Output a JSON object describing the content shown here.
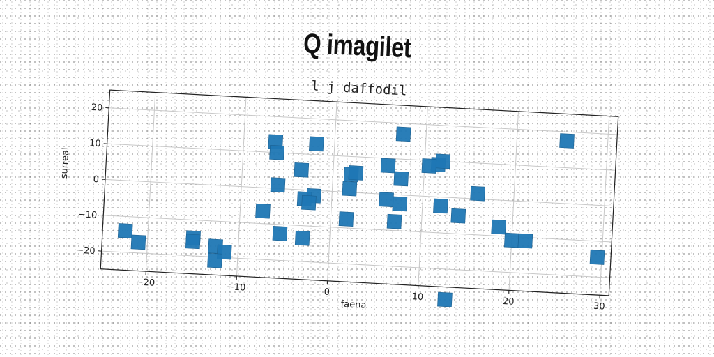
{
  "title": "Q imagilet",
  "chart_data": {
    "type": "scatter",
    "subtitle": "l j daffodil",
    "xlabel": "faena",
    "ylabel": "surreal",
    "xlim": [
      -25,
      31
    ],
    "ylim": [
      -25,
      25
    ],
    "xticks": [
      -20,
      -10,
      0,
      10,
      20,
      30
    ],
    "yticks": [
      -20,
      -10,
      0,
      10,
      20
    ],
    "xtick_labels": [
      "−20",
      "−10",
      "0",
      "10",
      "20",
      "30"
    ],
    "ytick_labels": [
      "−20",
      "−10",
      "0",
      "10",
      "20"
    ],
    "grid": true,
    "marker": "square",
    "color": "#1f77b4",
    "x": [
      7.5,
      25.5,
      -6.5,
      -6.3,
      -2,
      11.5,
      12,
      10.5,
      6,
      -3.5,
      2,
      2.5,
      7.5,
      -6,
      16,
      1.9,
      -2,
      -3,
      -2.5,
      6,
      7.5,
      12,
      14,
      7,
      -7.5,
      1.7,
      18.5,
      20,
      21.5,
      -5.5,
      -3,
      29.5,
      -22.5,
      -21,
      -15,
      -15,
      -12.5,
      -11.5,
      -12.5,
      13
    ],
    "y": [
      17,
      17.5,
      13,
      10,
      13,
      9,
      10,
      8.5,
      8,
      5.5,
      5,
      5.5,
      4.5,
      1,
      1.5,
      1,
      -1.5,
      -2.5,
      -3.5,
      -1.5,
      -2.5,
      -2.5,
      -5,
      -7.5,
      -6.5,
      -7.5,
      -7.5,
      -11,
      -11,
      -12.5,
      -13.5,
      -14.5,
      -14,
      -17,
      -15,
      -16,
      -17,
      -18.5,
      -21,
      -28.5
    ]
  }
}
